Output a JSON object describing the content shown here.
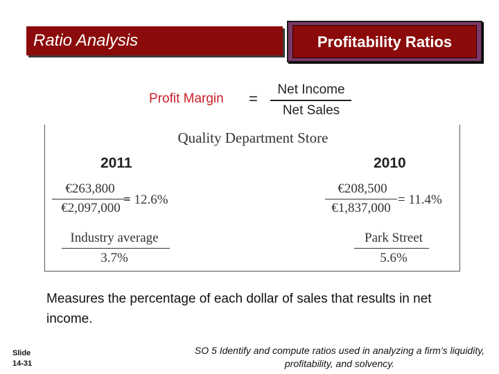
{
  "header": {
    "left_title": "Ratio Analysis",
    "right_title": "Profitability Ratios"
  },
  "formula": {
    "label": "Profit Margin",
    "equals": "=",
    "numerator": "Net Income",
    "denominator": "Net Sales"
  },
  "example": {
    "company": "Quality Department Store",
    "left": {
      "year": "2011",
      "numerator": "€263,800",
      "denominator": "€2,097,000",
      "result": "= 12.6%",
      "comparison_label": "Industry average",
      "comparison_value": "3.7%"
    },
    "right": {
      "year": "2010",
      "numerator": "€208,500",
      "denominator": "€1,837,000",
      "result": "= 11.4%",
      "comparison_label": "Park Street",
      "comparison_value": "5.6%"
    }
  },
  "description": "Measures the percentage of each dollar of sales that results in net income.",
  "footer": {
    "slide_label": "Slide",
    "slide_number": "14-31",
    "objective": "SO 5  Identify and compute ratios used in analyzing a firm’s liquidity, profitability, and solvency."
  },
  "colors": {
    "banner_red": "#8b0a0a",
    "banner_border": "#7a3a66",
    "formula_red": "#c8202a"
  }
}
